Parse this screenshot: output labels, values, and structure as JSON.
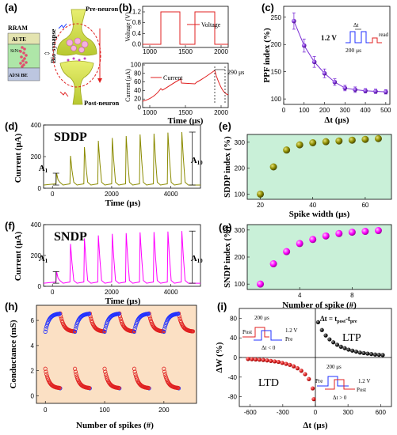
{
  "panel_labels": [
    "(a)",
    "(b)",
    "(c)",
    "(d)",
    "(e)",
    "(f)",
    "(g)",
    "(h)",
    "(i)"
  ],
  "colors": {
    "olive": "#8b8b00",
    "magenta": "#ff00ff",
    "red": "#e02020",
    "blue": "#2030ff",
    "purple": "#7b2fd6",
    "green_bg": "#c9f0d8",
    "orange_bg": "#fbe0c4",
    "dark_red": "#aa2222"
  },
  "panel_a": {
    "labels": {
      "rram": "RRAM",
      "al_te": "Al TE",
      "sinx": "SiNx",
      "al_si_be": "Al/Si BE",
      "pre_neuron": "Pre-neuron",
      "post_neuron": "Post-neuron",
      "bio_synapse": "Bio-synapse",
      "arrow": "⇔"
    }
  },
  "panel_b": {
    "voltage_axis_label": "Voltage (V)",
    "current_axis_label": "Current (μA)",
    "x_axis_label": "Time (μs)",
    "voltage_legend": "Voltage",
    "current_legend": "Current",
    "annotation": "290 μs",
    "voltage_ticks": [
      "0.0",
      "0.4",
      "0.8",
      "1.2"
    ],
    "current_ticks": [
      "0",
      "20",
      "40",
      "60",
      "80",
      "100"
    ],
    "x_ticks": [
      "1000",
      "1500",
      "2000"
    ]
  },
  "panel_c": {
    "chart_data": {
      "type": "scatter",
      "x": [
        50,
        100,
        150,
        200,
        250,
        300,
        350,
        400,
        450,
        500
      ],
      "values": [
        243,
        198,
        168,
        147,
        131,
        120,
        117,
        115,
        114,
        113
      ],
      "errors": [
        15,
        12,
        10,
        8,
        6,
        5,
        5,
        4,
        4,
        4
      ],
      "xlabel": "Δt (μs)",
      "ylabel": "PPF index (%)",
      "xlim": [
        0,
        520
      ],
      "ylim": [
        90,
        270
      ]
    },
    "x_ticks": [
      "0",
      "100",
      "200",
      "300",
      "400",
      "500"
    ],
    "y_ticks": [
      "100",
      "150",
      "200",
      "250"
    ],
    "inset": {
      "voltage": "1.2 V",
      "dt": "Δt",
      "width": "200 μs",
      "read": "read"
    }
  },
  "panel_d": {
    "title": "SDDP",
    "ylabel": "Current (μA)",
    "xlabel": "Time (μs)",
    "y_ticks": [
      "0",
      "200",
      "400"
    ],
    "x_ticks": [
      "0",
      "2000",
      "4000"
    ],
    "a1": "A",
    "a1_sub": "1",
    "a10": "A",
    "a10_sub": "10",
    "chart_data": {
      "type": "line",
      "pulse_peaks": [
        95,
        205,
        260,
        300,
        318,
        330,
        340,
        345,
        352,
        355
      ],
      "ylim": [
        0,
        400
      ],
      "xlim": [
        -300,
        5000
      ]
    }
  },
  "panel_e": {
    "chart_data": {
      "type": "scatter",
      "x": [
        20,
        25,
        30,
        35,
        40,
        45,
        50,
        55,
        60,
        65
      ],
      "values": [
        100,
        205,
        270,
        290,
        298,
        302,
        305,
        308,
        311,
        314
      ],
      "xlabel": "Spike width (μs)",
      "ylabel": "SDDP index (%)",
      "xlim": [
        15,
        70
      ],
      "ylim": [
        80,
        330
      ]
    },
    "x_ticks": [
      "20",
      "40",
      "60"
    ],
    "y_ticks": [
      "100",
      "200",
      "300"
    ]
  },
  "panel_f": {
    "title": "SNDP",
    "ylabel": "Current (μA)",
    "xlabel": "Time (μs)",
    "y_ticks": [
      "0",
      "200",
      "400"
    ],
    "x_ticks": [
      "0",
      "2000",
      "4000"
    ],
    "a1": "A",
    "a1_sub": "1",
    "a10": "A",
    "a10_sub": "10",
    "chart_data": {
      "type": "line",
      "pulse_peaks": [
        95,
        275,
        310,
        330,
        340,
        345,
        350,
        352,
        355,
        358
      ],
      "ylim": [
        0,
        400
      ],
      "xlim": [
        -300,
        5000
      ]
    }
  },
  "panel_g": {
    "chart_data": {
      "type": "scatter",
      "x": [
        1,
        2,
        3,
        4,
        5,
        6,
        7,
        8,
        9,
        10
      ],
      "values": [
        100,
        175,
        220,
        250,
        265,
        278,
        287,
        292,
        295,
        298
      ],
      "xlabel": "Number of spike (#)",
      "ylabel": "SNDP index (%)",
      "xlim": [
        0,
        11
      ],
      "ylim": [
        80,
        320
      ]
    },
    "x_ticks": [
      "4",
      "8"
    ],
    "y_ticks": [
      "100",
      "200",
      "300"
    ]
  },
  "panel_h": {
    "ylabel": "Conductance (mS)",
    "xlabel": "Number of spikes (#)",
    "x_ticks": [
      "0",
      "100",
      "200"
    ],
    "y_ticks": [
      "0",
      "2",
      "4",
      "6"
    ],
    "chart_data": {
      "type": "scatter",
      "potentiation_start": 5.1,
      "potentiation_end": 6.55,
      "depression_start": 2.15,
      "depression_end": 0.6,
      "cycles": 5,
      "points_per_phase": 25,
      "xlim": [
        -15,
        255
      ],
      "ylim": [
        -0.6,
        7.2
      ]
    }
  },
  "panel_i": {
    "ylabel": "ΔW (%)",
    "xlabel": "Δt (μs)",
    "x_ticks": [
      "-600",
      "-300",
      "0",
      "300",
      "600"
    ],
    "y_ticks": [
      "-80",
      "-40",
      "0",
      "40",
      "80"
    ],
    "ltp": "LTP",
    "ltd": "LTD",
    "formula": "Δt = t",
    "formula_post": "post",
    "formula_minus": "-t",
    "formula_pre": "pre",
    "inset_top": {
      "width": "200 μs",
      "post": "Post",
      "pre": "Pre",
      "voltage": "1.2 V",
      "dt": "Δt < 0"
    },
    "inset_bottom": {
      "width": "200 μs",
      "pre": "Pre",
      "post": "Post",
      "voltage": "1.2 V",
      "dt": "Δt > 0"
    },
    "chart_data": {
      "type": "scatter",
      "ltp_x": [
        25,
        60,
        95,
        130,
        165,
        200,
        235,
        270,
        305,
        340,
        375,
        410,
        445,
        480,
        515,
        550,
        585,
        620
      ],
      "ltp_y": [
        72,
        56,
        45,
        37,
        31,
        26,
        22,
        19,
        16,
        14,
        12,
        10,
        9,
        8,
        7,
        6,
        5.5,
        5
      ],
      "ltd_x": [
        -620,
        -585,
        -550,
        -515,
        -480,
        -445,
        -410,
        -375,
        -340,
        -305,
        -270,
        -235,
        -200,
        -165,
        -130,
        -95,
        -60,
        -25
      ],
      "ltd_y": [
        -3,
        -3.5,
        -4,
        -4.5,
        -5,
        -6,
        -7,
        -8,
        -9,
        -11,
        -13,
        -15,
        -18,
        -22,
        -27,
        -34,
        -44,
        -63
      ],
      "ltd_extra_x": -15,
      "ltd_extra_y": -85,
      "xlim": [
        -700,
        700
      ],
      "ylim": [
        -100,
        100
      ]
    }
  }
}
